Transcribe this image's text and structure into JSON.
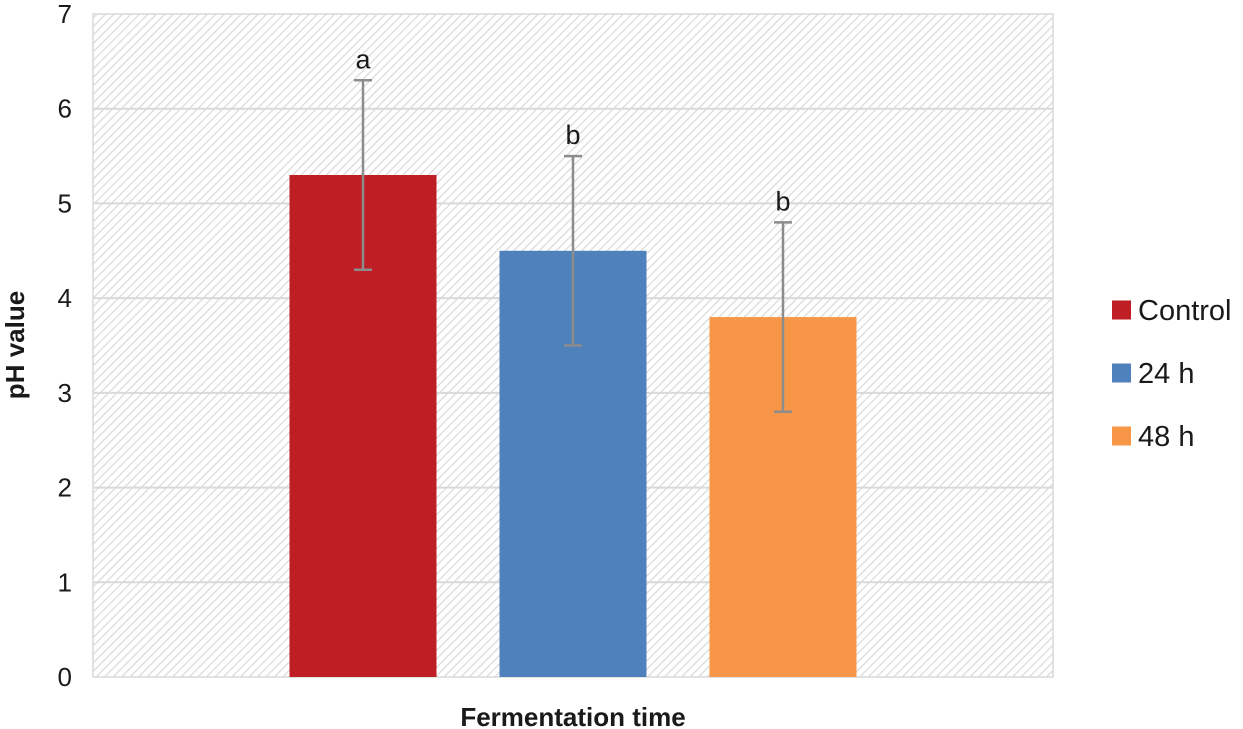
{
  "chart_data": {
    "type": "bar",
    "title": "",
    "xlabel": "Fermentation time",
    "ylabel": "pH value",
    "ylim": [
      0,
      7
    ],
    "yticks": [
      "0",
      "1",
      "2",
      "3",
      "4",
      "5",
      "6",
      "7"
    ],
    "grid": true,
    "legend_position": "right",
    "series": [
      {
        "name": "Control",
        "value": 5.3,
        "error": 1.0,
        "significance": "a",
        "color": "#be1e24"
      },
      {
        "name": "24 h",
        "value": 4.5,
        "error": 1.0,
        "significance": "b",
        "color": "#4f81bd"
      },
      {
        "name": "48 h",
        "value": 3.8,
        "error": 1.0,
        "significance": "b",
        "color": "#f79646"
      }
    ]
  }
}
